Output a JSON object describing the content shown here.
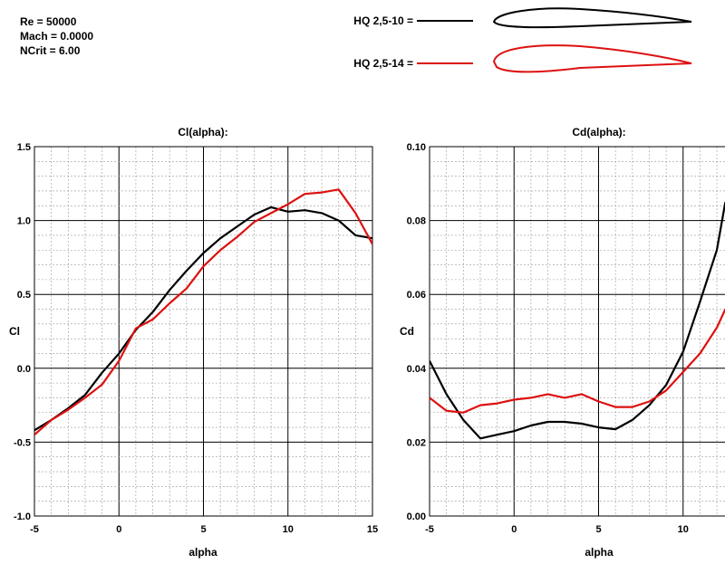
{
  "conditions": {
    "re": "Re = 50000",
    "mach": "Mach = 0.0000",
    "ncrit": "NCrit = 6.00"
  },
  "legend": [
    {
      "label": "HQ 2,5-10 =",
      "color": "#000000"
    },
    {
      "label": "HQ 2,5-14 =",
      "color": "#dd1111"
    }
  ],
  "chart_data": [
    {
      "type": "line",
      "title": "Cl(alpha):",
      "xlabel": "alpha",
      "ylabel": "Cl",
      "xlim": [
        -5,
        15
      ],
      "ylim": [
        -1.0,
        1.5
      ],
      "xticks": [
        -5,
        0,
        5,
        10,
        15
      ],
      "yticks": [
        -1.0,
        -0.5,
        0.0,
        0.5,
        1.0,
        1.5
      ],
      "ytick_labels": [
        "-1.0",
        "-0.5",
        "0.0",
        "0.5",
        "1.0",
        "1.5"
      ],
      "grid": true,
      "series": [
        {
          "color": "#000000",
          "x": [
            -5,
            -4,
            -3,
            -2,
            -1,
            0,
            1,
            2,
            3,
            4,
            5,
            6,
            7,
            8,
            9,
            10,
            11,
            12,
            13,
            14,
            15
          ],
          "y": [
            -0.42,
            -0.35,
            -0.27,
            -0.18,
            -0.03,
            0.1,
            0.26,
            0.38,
            0.53,
            0.66,
            0.78,
            0.88,
            0.96,
            1.04,
            1.09,
            1.06,
            1.07,
            1.05,
            1.0,
            0.9,
            0.88
          ]
        },
        {
          "color": "#dd1111",
          "x": [
            -5,
            -4,
            -3,
            -2,
            -1,
            0,
            1,
            2,
            3,
            4,
            5,
            6,
            7,
            8,
            9,
            10,
            11,
            12,
            13,
            14,
            15
          ],
          "y": [
            -0.45,
            -0.35,
            -0.28,
            -0.2,
            -0.11,
            0.05,
            0.27,
            0.33,
            0.44,
            0.54,
            0.69,
            0.8,
            0.89,
            0.99,
            1.05,
            1.11,
            1.18,
            1.19,
            1.21,
            1.05,
            0.84
          ]
        }
      ]
    },
    {
      "type": "line",
      "title": "Cd(alpha):",
      "xlabel": "alpha",
      "ylabel": "Cd",
      "xlim": [
        -5,
        15
      ],
      "ylim": [
        0.0,
        0.1
      ],
      "xticks": [
        -5,
        0,
        5,
        10
      ],
      "yticks": [
        0.0,
        0.02,
        0.04,
        0.06,
        0.08,
        0.1
      ],
      "ytick_labels": [
        "0.00",
        "0.02",
        "0.04",
        "0.06",
        "0.08",
        "0.10"
      ],
      "grid": true,
      "series": [
        {
          "color": "#000000",
          "x": [
            -5,
            -4,
            -3,
            -2,
            -1,
            0,
            1,
            2,
            3,
            4,
            5,
            6,
            7,
            8,
            9,
            10,
            11,
            12,
            12.5
          ],
          "y": [
            0.042,
            0.033,
            0.026,
            0.021,
            0.022,
            0.023,
            0.0245,
            0.0255,
            0.0255,
            0.025,
            0.024,
            0.0235,
            0.026,
            0.03,
            0.0355,
            0.0445,
            0.058,
            0.072,
            0.085
          ]
        },
        {
          "color": "#dd1111",
          "x": [
            -5,
            -4,
            -3,
            -2,
            -1,
            0,
            1,
            2,
            3,
            4,
            5,
            6,
            7,
            8,
            9,
            10,
            11,
            12,
            12.5
          ],
          "y": [
            0.032,
            0.0285,
            0.028,
            0.03,
            0.0305,
            0.0315,
            0.032,
            0.033,
            0.032,
            0.033,
            0.031,
            0.0295,
            0.0295,
            0.031,
            0.034,
            0.039,
            0.044,
            0.051,
            0.056
          ]
        }
      ]
    }
  ]
}
